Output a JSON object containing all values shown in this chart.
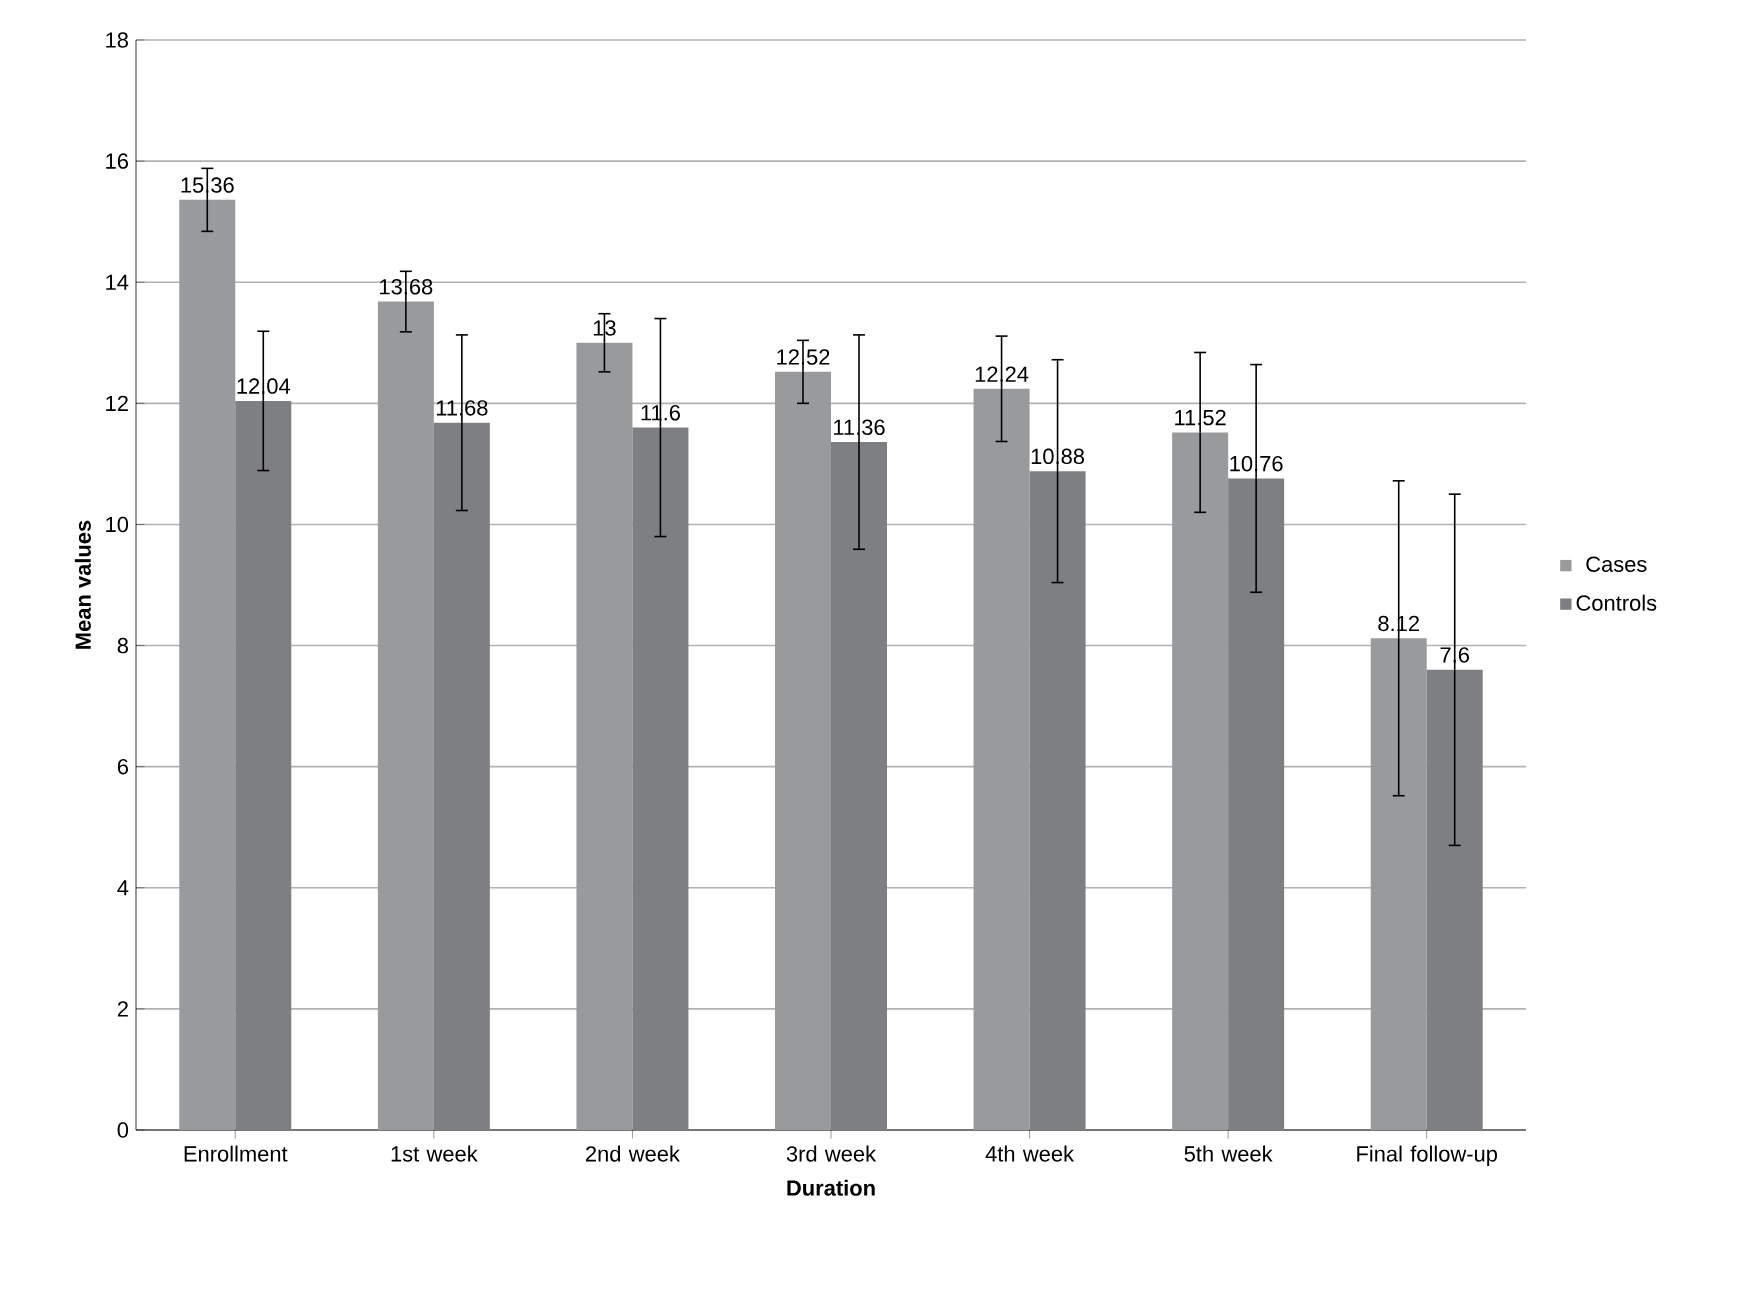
{
  "chart_data": {
    "type": "bar",
    "xlabel": "Duration",
    "ylabel": "Mean values",
    "categories": [
      "Enrollment",
      "1st week",
      "2nd week",
      "3rd week",
      "4th week",
      "5th week",
      "Final follow-up"
    ],
    "series": [
      {
        "name": "Cases",
        "color": "#999a9c",
        "values": [
          15.36,
          13.68,
          13,
          12.52,
          12.24,
          11.52,
          8.12
        ],
        "errors": [
          0.52,
          0.5,
          0.48,
          0.52,
          0.87,
          1.32,
          2.6
        ]
      },
      {
        "name": "Controls",
        "color": "#7e7f83",
        "values": [
          12.04,
          11.68,
          11.6,
          11.36,
          10.88,
          10.76,
          7.6
        ],
        "errors": [
          1.15,
          1.45,
          1.8,
          1.77,
          1.84,
          1.88,
          2.9
        ]
      }
    ],
    "ylim": [
      0,
      18
    ],
    "yticks": [
      0,
      2,
      4,
      6,
      8,
      10,
      12,
      14,
      16,
      18
    ],
    "grid": "y",
    "legend": "right",
    "data_labels": true
  }
}
